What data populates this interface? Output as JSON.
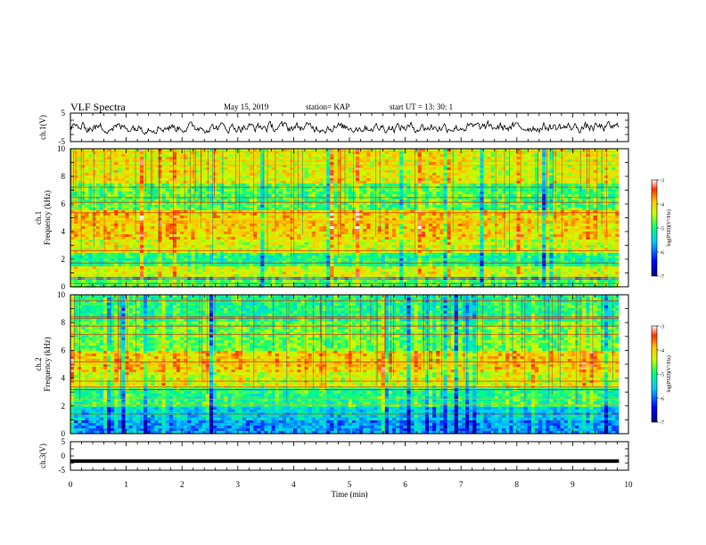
{
  "header": {
    "title": "VLF Spectra",
    "date": "May 15, 2019",
    "station": "station= KAP",
    "start_ut": "start  UT  =   13: 30: 1"
  },
  "colors": {
    "background": "#ffffff",
    "axes": "#000000",
    "colormap": [
      "#000080",
      "#0000ff",
      "#00c8ff",
      "#00ff80",
      "#c8ff00",
      "#ffc800",
      "#ff3000",
      "#ffffff"
    ]
  },
  "chart_data": [
    {
      "type": "line",
      "panel": "ch1-waveform",
      "ylabel": "ch.1(V)",
      "ylim": [
        -5,
        5
      ],
      "yticks": [
        "5",
        "-5"
      ],
      "xlim": [
        0,
        10
      ],
      "description_level_V": 0,
      "amplitude_V": [
        -2.5,
        2.5
      ]
    },
    {
      "type": "heatmap",
      "panel": "ch1-spectrogram",
      "ylabel": "ch.1\nFrequency (kHz)",
      "ylim": [
        0,
        10
      ],
      "yticks": [
        "0",
        "2",
        "4",
        "6",
        "8",
        "10"
      ],
      "xlim": [
        0,
        10
      ],
      "colorbar": {
        "label": "log(PSD)(V²/Hz)",
        "range": [
          -7,
          -3
        ],
        "ticks": [
          "-3",
          "-4",
          "-5",
          "-6",
          "-7"
        ]
      },
      "bands": [
        {
          "from": 0.0,
          "to": 0.5,
          "level": -4.8
        },
        {
          "from": 0.5,
          "to": 0.7,
          "level": -5.8
        },
        {
          "from": 0.7,
          "to": 1.5,
          "level": -4.3
        },
        {
          "from": 1.5,
          "to": 2.4,
          "level": -5.0
        },
        {
          "from": 2.4,
          "to": 3.5,
          "level": -4.3
        },
        {
          "from": 3.5,
          "to": 5.5,
          "level": -4.0
        },
        {
          "from": 5.5,
          "to": 7.5,
          "level": -4.8
        },
        {
          "from": 7.5,
          "to": 10.0,
          "level": -4.2
        }
      ]
    },
    {
      "type": "heatmap",
      "panel": "ch2-spectrogram",
      "ylabel": "ch.2\nFrequency (kHz)",
      "ylim": [
        0,
        10
      ],
      "yticks": [
        "0",
        "2",
        "4",
        "6",
        "8",
        "10"
      ],
      "xlim": [
        0,
        10
      ],
      "colorbar": {
        "label": "log(PSD)(V²/Hz)",
        "range": [
          -7,
          -3
        ],
        "ticks": [
          "-3",
          "-4",
          "-5",
          "-6",
          "-7"
        ]
      },
      "bands": [
        {
          "from": 0.0,
          "to": 1.0,
          "level": -5.8
        },
        {
          "from": 1.0,
          "to": 2.0,
          "level": -5.5
        },
        {
          "from": 2.0,
          "to": 3.2,
          "level": -5.0
        },
        {
          "from": 3.2,
          "to": 4.5,
          "level": -4.3
        },
        {
          "from": 4.5,
          "to": 6.0,
          "level": -4.0
        },
        {
          "from": 6.0,
          "to": 8.0,
          "level": -4.7
        },
        {
          "from": 8.0,
          "to": 10.0,
          "level": -5.0
        }
      ]
    },
    {
      "type": "line",
      "panel": "ch3-waveform",
      "ylabel": "ch.3(V)",
      "ylim": [
        -5,
        5
      ],
      "yticks": [
        "5",
        "0",
        "-5"
      ],
      "xlim": [
        0,
        10
      ],
      "level_V": -1.8
    },
    {
      "type": "axis",
      "panel": "time-axis",
      "xlabel": "Time (min)",
      "xlim": [
        0,
        10
      ],
      "xticks": [
        "0",
        "1",
        "2",
        "3",
        "4",
        "5",
        "6",
        "7",
        "8",
        "9",
        "10"
      ]
    }
  ]
}
